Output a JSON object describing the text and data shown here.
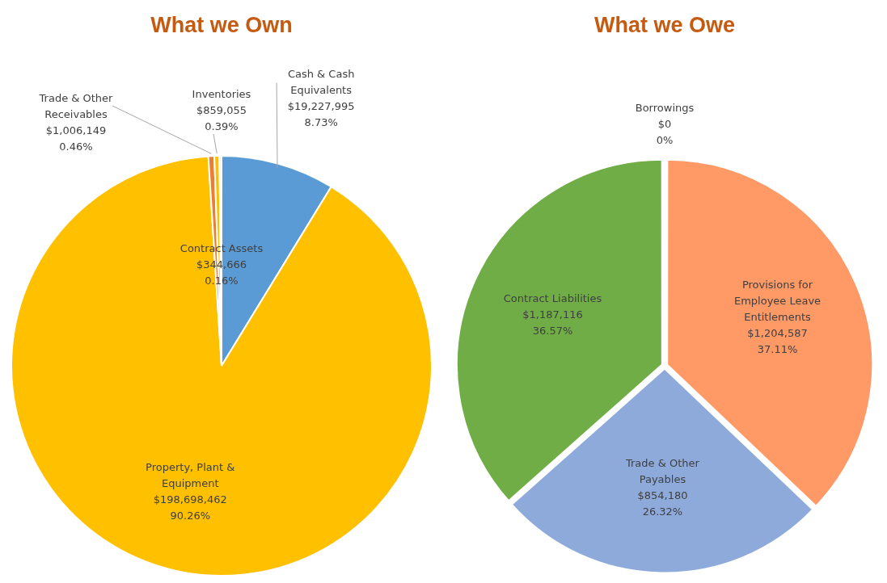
{
  "chart_data": [
    {
      "type": "pie",
      "title": "What we Own",
      "categories": [
        "Cash & Cash Equivalents",
        "Property, Plant & Equipment",
        "Trade & Other Receivables",
        "Inventories",
        "Contract Assets"
      ],
      "values": [
        19227995,
        198698462,
        1006149,
        859055,
        344666
      ],
      "colors": [
        "#5b9bd5",
        "#ffc000",
        "#ed7d31",
        "#ffc000",
        "#dde6f2"
      ],
      "value_labels": [
        "$19,227,995\n8.73%",
        "$198,698,462\n90.26%",
        "$1,006,149\n0.46%",
        "$859,055\n0.39%",
        "$344,666\n0.16%"
      ]
    },
    {
      "type": "pie",
      "title": "What we Owe",
      "categories": [
        "Borrowings",
        "Provisions for Employee Leave Entitlements",
        "Trade & Other Payables",
        "Contract Liabilities"
      ],
      "values": [
        0,
        1204587,
        854180,
        1187116
      ],
      "colors": [
        "#4472c4",
        "#ff9966",
        "#8eaadb",
        "#70ad47"
      ],
      "value_labels": [
        "$0\n0%",
        "$1,204,587\n37.11%",
        "$854,180\n26.32%",
        "$1,187,116\n36.57%"
      ]
    }
  ]
}
